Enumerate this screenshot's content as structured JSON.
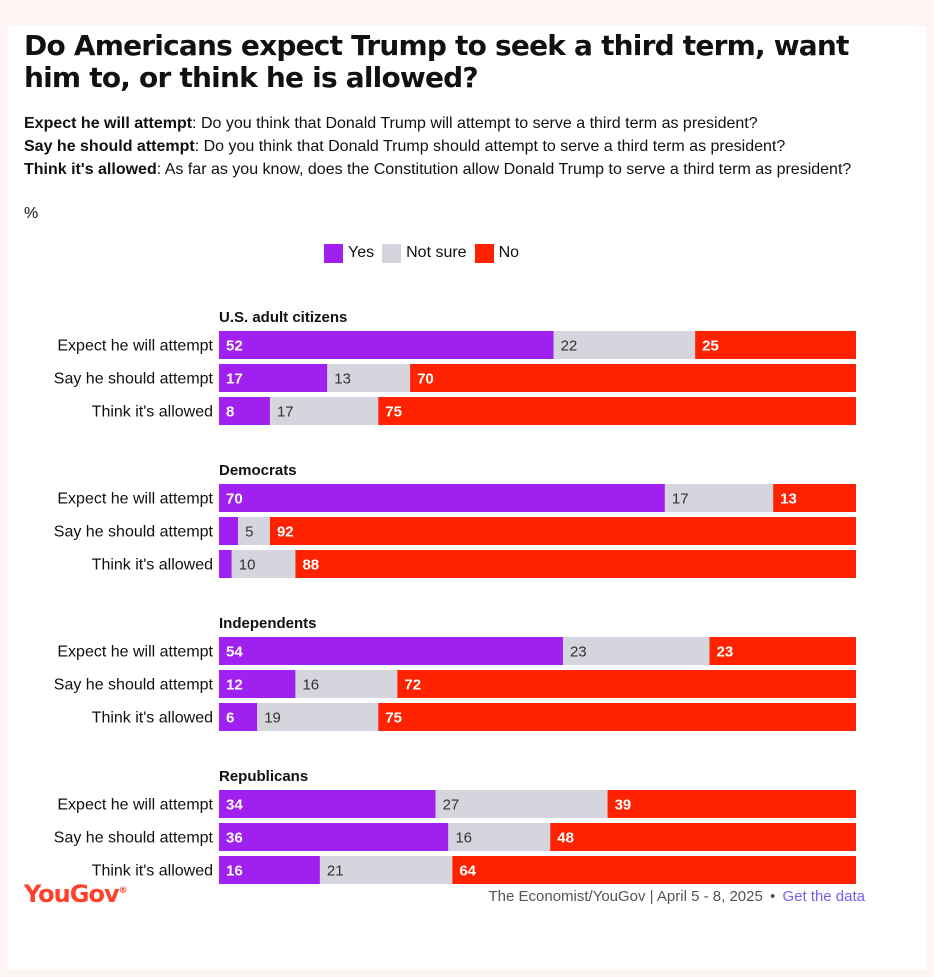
{
  "title": "Do Americans expect Trump to seek a third term, want him to, or think he is allowed?",
  "questions": [
    {
      "label": "Expect he will attempt",
      "text": ": Do you think that Donald Trump will attempt to serve a third term as president?"
    },
    {
      "label": "Say he should attempt",
      "text": ": Do you think that Donald Trump should attempt to serve a third term as president?"
    },
    {
      "label": "Think it's allowed",
      "text": ": As far as you know, does the Constitution allow Donald Trump to serve a third term as president?"
    }
  ],
  "unit": "%",
  "colors": {
    "yes": "#a020f0",
    "not_sure": "#d4d5dd",
    "no": "#ff2200"
  },
  "chart_data": {
    "type": "bar",
    "orientation": "horizontal",
    "stacked": true,
    "xlim": [
      0,
      100
    ],
    "legend": [
      "Yes",
      "Not sure",
      "No"
    ],
    "categories": [
      "Expect he will attempt",
      "Say he should attempt",
      "Think it's allowed"
    ],
    "groups": [
      {
        "name": "U.S. adult citizens",
        "rows": [
          [
            52,
            22,
            25
          ],
          [
            17,
            13,
            70
          ],
          [
            8,
            17,
            75
          ]
        ]
      },
      {
        "name": "Democrats",
        "rows": [
          [
            70,
            17,
            13
          ],
          [
            3,
            5,
            92
          ],
          [
            2,
            10,
            88
          ]
        ]
      },
      {
        "name": "Independents",
        "rows": [
          [
            54,
            23,
            23
          ],
          [
            12,
            16,
            72
          ],
          [
            6,
            19,
            75
          ]
        ]
      },
      {
        "name": "Republicans",
        "rows": [
          [
            34,
            27,
            39
          ],
          [
            36,
            16,
            48
          ],
          [
            16,
            21,
            64
          ]
        ]
      }
    ],
    "hidden_labels_below": 5
  },
  "footer": {
    "logo": "YouGov",
    "source": "The Economist/YouGov | April 5 - 8, 2025",
    "separator": "•",
    "link": "Get the data"
  }
}
